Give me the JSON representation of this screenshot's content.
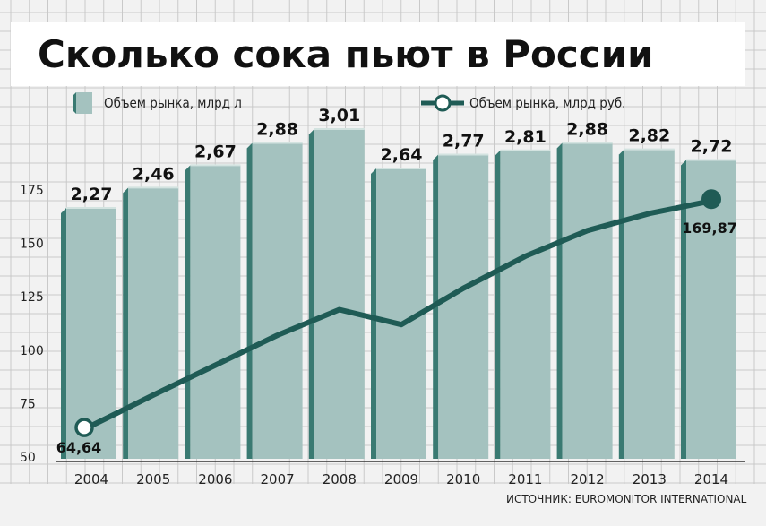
{
  "chart_data": {
    "type": "bar",
    "title": "Сколько сока пьют в России",
    "categories": [
      "2004",
      "2005",
      "2006",
      "2007",
      "2008",
      "2009",
      "2010",
      "2011",
      "2012",
      "2013",
      "2014"
    ],
    "series": [
      {
        "name": "Объем рынка, млрд л",
        "type": "bar",
        "values": [
          2.27,
          2.46,
          2.67,
          2.88,
          3.01,
          2.64,
          2.77,
          2.81,
          2.88,
          2.82,
          2.72
        ],
        "labels": [
          "2,27",
          "2,46",
          "2,67",
          "2,88",
          "3,01",
          "2,64",
          "2,77",
          "2,81",
          "2,88",
          "2,82",
          "2,72"
        ]
      },
      {
        "name": "Объем рынка, млрд руб.",
        "type": "line",
        "values": [
          64.64,
          79,
          93,
          107,
          119,
          112,
          129,
          144,
          156,
          164,
          169.87
        ],
        "point_labels": {
          "0": "64,64",
          "10": "169,87"
        }
      }
    ],
    "yticks": [
      50,
      75,
      100,
      125,
      150,
      175
    ],
    "ylabels": [
      "50",
      "75",
      "100",
      "125",
      "150",
      "175"
    ],
    "ylim": [
      45,
      195
    ],
    "grid": true,
    "legend_position": "top",
    "source": "ИСТОЧНИК: EUROMONITOR INTERNATIONAL",
    "colors": {
      "bar_front": "#a4c2bf",
      "bar_side": "#3a7a72",
      "bar_top": "#d3e3e0",
      "line": "#1f5b55",
      "grid": "#c9c9c9",
      "background": "#f2f2f2"
    }
  }
}
